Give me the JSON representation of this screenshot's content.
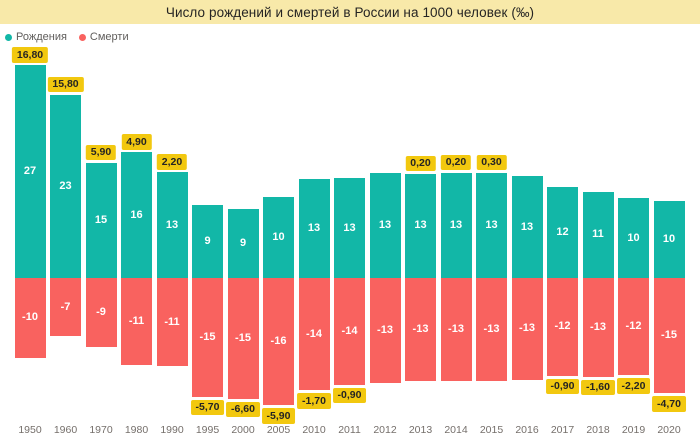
{
  "title": "Число рождений и смертей в России на 1000 человек (‰)",
  "legend": {
    "items": [
      {
        "label": "Рождения",
        "color": "#12B7A7"
      },
      {
        "label": "Смерти",
        "color": "#F9625F"
      }
    ]
  },
  "colors": {
    "births_bar": "#12B7A7",
    "deaths_bar": "#F9625F",
    "badge_bg": "#F2C80F",
    "badge_text": "#252423",
    "title_bar_bg": "#F8E9A9",
    "title_text": "#252423",
    "axis_label_text": "#756F6B",
    "bar_value_text": "#FFFFFF",
    "legend_text": "#605E5C",
    "background": "#FFFFFF"
  },
  "chart_data": {
    "type": "bar",
    "subtype": "diverging-stacked-column",
    "title": "Число рождений и смертей в России на 1000 человек (‰)",
    "xlabel": "",
    "ylabel": "",
    "unit": "на 1000 человек (‰)",
    "grid": false,
    "legend_position": "top-left",
    "ylim": [
      -16.1,
      26.9
    ],
    "categories": [
      "1950",
      "1960",
      "1970",
      "1980",
      "1990",
      "1995",
      "2000",
      "2005",
      "2010",
      "2011",
      "2012",
      "2013",
      "2014",
      "2015",
      "2016",
      "2017",
      "2018",
      "2019",
      "2020"
    ],
    "series": [
      {
        "name": "Рождения",
        "color": "#12B7A7",
        "value_labels": [
          "27",
          "23",
          "15",
          "16",
          "13",
          "9",
          "9",
          "10",
          "13",
          "13",
          "13",
          "13",
          "13",
          "13",
          "13",
          "12",
          "11",
          "10",
          "10"
        ],
        "values": [
          26.9,
          23.2,
          14.6,
          15.9,
          13.4,
          9.3,
          8.7,
          10.2,
          12.5,
          12.6,
          13.3,
          13.2,
          13.3,
          13.3,
          12.9,
          11.5,
          10.9,
          10.1,
          9.8
        ]
      },
      {
        "name": "Смерти",
        "color": "#F9625F",
        "value_labels": [
          "-10",
          "-7",
          "-9",
          "-11",
          "-11",
          "-15",
          "-15",
          "-16",
          "-14",
          "-14",
          "-13",
          "-13",
          "-13",
          "-13",
          "-13",
          "-12",
          "-13",
          "-12",
          "-15"
        ],
        "values": [
          -10.1,
          -7.4,
          -8.7,
          -11.0,
          -11.2,
          -15.0,
          -15.3,
          -16.1,
          -14.2,
          -13.5,
          -13.3,
          -13.0,
          -13.1,
          -13.0,
          -12.9,
          -12.4,
          -12.5,
          -12.3,
          -14.6
        ]
      }
    ],
    "natural_increase_labels": [
      "16,80",
      "15,80",
      "5,90",
      "4,90",
      "2,20",
      "-5,70",
      "-6,60",
      "-5,90",
      "-1,70",
      "-0,90",
      null,
      "0,20",
      "0,20",
      "0,30",
      null,
      "-0,90",
      "-1,60",
      "-2,20",
      "-4,70"
    ]
  }
}
